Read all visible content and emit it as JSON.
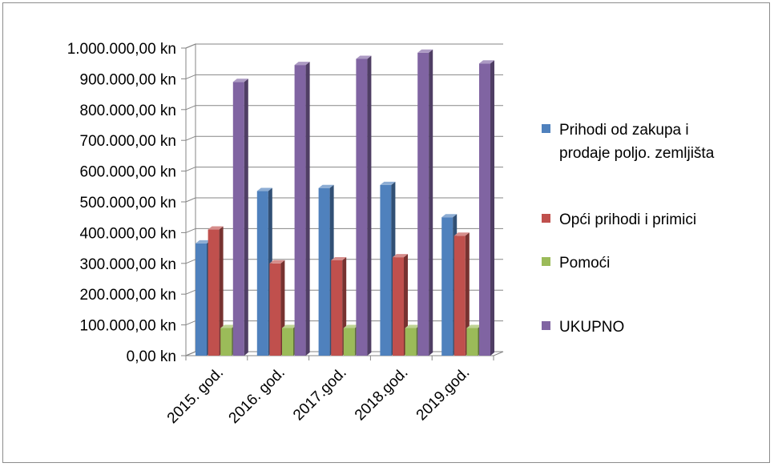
{
  "chart_data": {
    "type": "bar",
    "categories": [
      "2015. god.",
      "2016. god.",
      "2017.god.",
      "2018.god.",
      "2019.god."
    ],
    "series": [
      {
        "name": "Prihodi od zakupa i prodaje poljo. zemljišta",
        "name_lines": [
          "Prihodi od zakupa i",
          "prodaje poljo. zemljišta"
        ],
        "color": "#4f81bd",
        "values": [
          365000,
          535000,
          545000,
          555000,
          450000
        ]
      },
      {
        "name": "Opći prihodi i primici",
        "name_lines": [
          "Opći prihodi i primici"
        ],
        "color": "#c0504d",
        "values": [
          410000,
          300000,
          310000,
          320000,
          390000
        ]
      },
      {
        "name": "Pomoći",
        "name_lines": [
          "Pomoći"
        ],
        "color": "#9bbb59",
        "values": [
          90000,
          90000,
          90000,
          90000,
          90000
        ]
      },
      {
        "name": "UKUPNO",
        "name_lines": [
          "UKUPNO"
        ],
        "color": "#8064a2",
        "values": [
          890000,
          945000,
          965000,
          985000,
          950000
        ]
      }
    ],
    "y_ticks": [
      "0,00 kn",
      "100.000,00 kn",
      "200.000,00 kn",
      "300.000,00 kn",
      "400.000,00 kn",
      "500.000,00 kn",
      "600.000,00 kn",
      "700.000,00 kn",
      "800.000,00 kn",
      "900.000,00 kn",
      "1.000.000,00 kn"
    ],
    "ylim": [
      0,
      1000000
    ],
    "grid": true,
    "legend": "right",
    "style": "3d-clustered-column"
  }
}
